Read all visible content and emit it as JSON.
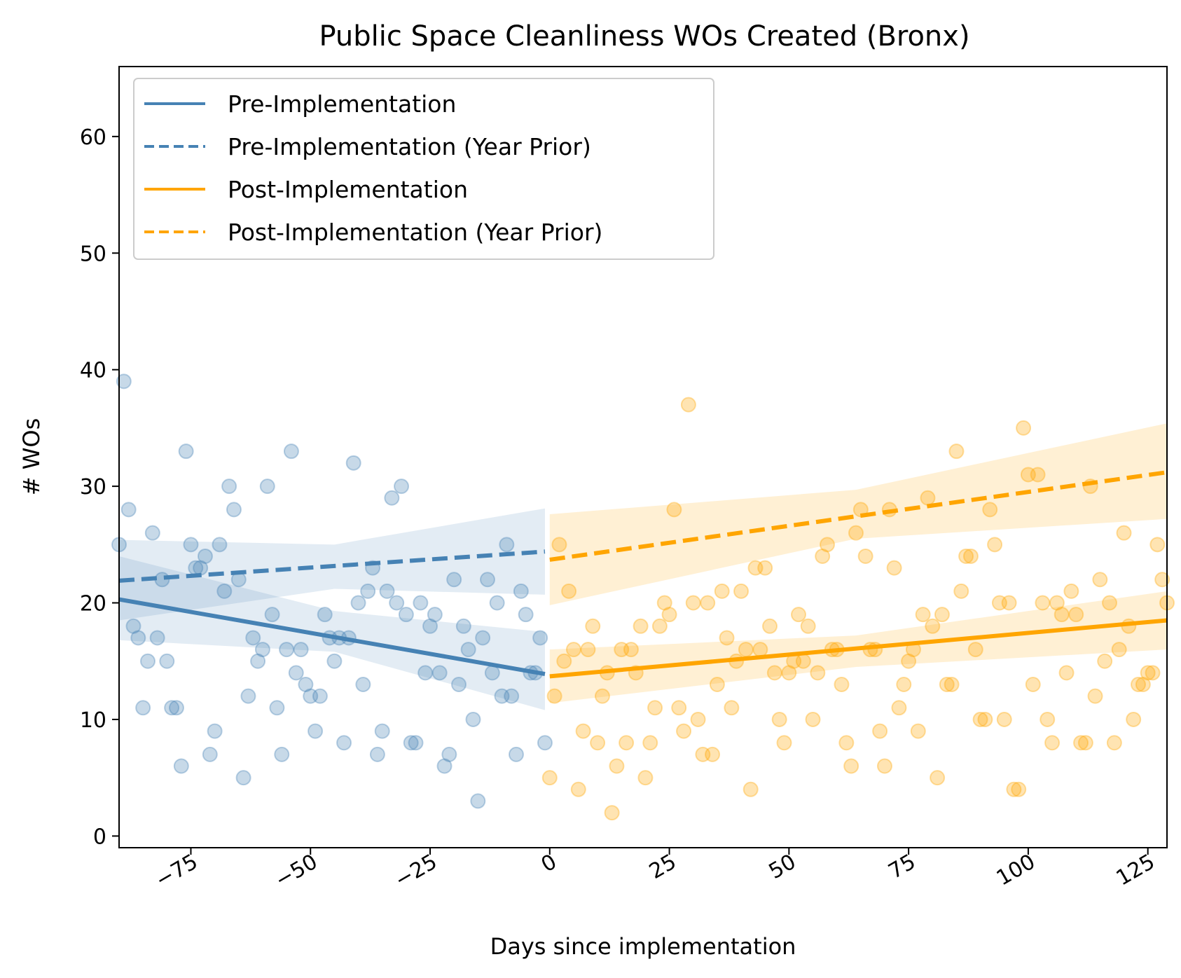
{
  "chart_data": {
    "type": "scatter",
    "title": "Public Space Cleanliness WOs Created (Bronx)",
    "xlabel": "Days since implementation",
    "ylabel": "# WOs",
    "xlim": [
      -90,
      129
    ],
    "ylim": [
      -1,
      66
    ],
    "xticks": [
      -75,
      -50,
      -25,
      0,
      25,
      50,
      75,
      100,
      125
    ],
    "xtick_labels": [
      "−75",
      "−50",
      "−25",
      "0",
      "25",
      "50",
      "75",
      "100",
      "125"
    ],
    "yticks": [
      0,
      10,
      20,
      30,
      40,
      50,
      60
    ],
    "ytick_labels": [
      "0",
      "10",
      "20",
      "30",
      "40",
      "50",
      "60"
    ],
    "grid": false,
    "legend_position": "top-left",
    "colors": {
      "pre": "#4682b4",
      "post": "#ffa500"
    },
    "series": [
      {
        "name": "Pre-Implementation",
        "color": "#4682b4",
        "style": "solid",
        "line": [
          [
            -90,
            20.3
          ],
          [
            -1,
            13.9
          ]
        ],
        "band": [
          [
            -90,
            24.0,
            16.8
          ],
          [
            -45,
            19.3,
            15.8
          ],
          [
            -1,
            17.5,
            10.8
          ]
        ]
      },
      {
        "name": "Pre-Implementation (Year Prior)",
        "color": "#4682b4",
        "style": "dashed",
        "line": [
          [
            -90,
            21.9
          ],
          [
            -1,
            24.4
          ]
        ],
        "band": [
          [
            -90,
            25.4,
            18.5
          ],
          [
            -45,
            25.0,
            21.2
          ],
          [
            -1,
            28.1,
            20.7
          ]
        ]
      },
      {
        "name": "Post-Implementation",
        "color": "#ffa500",
        "style": "solid",
        "line": [
          [
            0,
            13.7
          ],
          [
            129,
            18.5
          ]
        ],
        "band": [
          [
            0,
            16.0,
            11.4
          ],
          [
            64,
            17.2,
            14.5
          ],
          [
            129,
            21.0,
            16.0
          ]
        ]
      },
      {
        "name": "Post-Implementation (Year Prior)",
        "color": "#ffa500",
        "style": "dashed",
        "line": [
          [
            0,
            23.7
          ],
          [
            129,
            31.2
          ]
        ],
        "band": [
          [
            0,
            27.6,
            19.8
          ],
          [
            64,
            29.7,
            25.5
          ],
          [
            129,
            35.4,
            27.2
          ]
        ]
      }
    ],
    "points_pre": [
      [
        -90,
        25
      ],
      [
        -89,
        39
      ],
      [
        -88,
        28
      ],
      [
        -87,
        18
      ],
      [
        -86,
        17
      ],
      [
        -85,
        11
      ],
      [
        -84,
        15
      ],
      [
        -83,
        26
      ],
      [
        -82,
        17
      ],
      [
        -81,
        22
      ],
      [
        -80,
        15
      ],
      [
        -79,
        11
      ],
      [
        -78,
        11
      ],
      [
        -77,
        6
      ],
      [
        -76,
        33
      ],
      [
        -75,
        25
      ],
      [
        -74,
        23
      ],
      [
        -73,
        23
      ],
      [
        -72,
        24
      ],
      [
        -71,
        7
      ],
      [
        -70,
        9
      ],
      [
        -69,
        25
      ],
      [
        -68,
        21
      ],
      [
        -67,
        30
      ],
      [
        -66,
        28
      ],
      [
        -65,
        22
      ],
      [
        -64,
        5
      ],
      [
        -63,
        12
      ],
      [
        -62,
        17
      ],
      [
        -61,
        15
      ],
      [
        -60,
        16
      ],
      [
        -59,
        30
      ],
      [
        -58,
        19
      ],
      [
        -57,
        11
      ],
      [
        -56,
        7
      ],
      [
        -55,
        16
      ],
      [
        -54,
        33
      ],
      [
        -53,
        14
      ],
      [
        -52,
        16
      ],
      [
        -51,
        13
      ],
      [
        -50,
        12
      ],
      [
        -49,
        9
      ],
      [
        -48,
        12
      ],
      [
        -47,
        19
      ],
      [
        -46,
        17
      ],
      [
        -45,
        15
      ],
      [
        -44,
        17
      ],
      [
        -43,
        8
      ],
      [
        -42,
        17
      ],
      [
        -41,
        32
      ],
      [
        -40,
        20
      ],
      [
        -39,
        13
      ],
      [
        -38,
        21
      ],
      [
        -37,
        23
      ],
      [
        -36,
        7
      ],
      [
        -35,
        9
      ],
      [
        -34,
        21
      ],
      [
        -33,
        29
      ],
      [
        -32,
        20
      ],
      [
        -31,
        30
      ],
      [
        -30,
        19
      ],
      [
        -29,
        8
      ],
      [
        -28,
        8
      ],
      [
        -27,
        20
      ],
      [
        -26,
        14
      ],
      [
        -25,
        18
      ],
      [
        -24,
        19
      ],
      [
        -23,
        14
      ],
      [
        -22,
        6
      ],
      [
        -21,
        7
      ],
      [
        -20,
        22
      ],
      [
        -19,
        13
      ],
      [
        -18,
        18
      ],
      [
        -17,
        16
      ],
      [
        -16,
        10
      ],
      [
        -15,
        3
      ],
      [
        -14,
        17
      ],
      [
        -13,
        22
      ],
      [
        -12,
        14
      ],
      [
        -11,
        20
      ],
      [
        -10,
        12
      ],
      [
        -9,
        25
      ],
      [
        -8,
        12
      ],
      [
        -7,
        7
      ],
      [
        -6,
        21
      ],
      [
        -5,
        19
      ],
      [
        -4,
        14
      ],
      [
        -3,
        14
      ],
      [
        -2,
        17
      ],
      [
        -1,
        8
      ]
    ],
    "points_post": [
      [
        0,
        5
      ],
      [
        1,
        12
      ],
      [
        2,
        25
      ],
      [
        3,
        15
      ],
      [
        4,
        21
      ],
      [
        5,
        16
      ],
      [
        6,
        4
      ],
      [
        7,
        9
      ],
      [
        8,
        16
      ],
      [
        9,
        18
      ],
      [
        10,
        8
      ],
      [
        11,
        12
      ],
      [
        12,
        14
      ],
      [
        13,
        2
      ],
      [
        14,
        6
      ],
      [
        15,
        16
      ],
      [
        16,
        8
      ],
      [
        17,
        16
      ],
      [
        18,
        14
      ],
      [
        19,
        18
      ],
      [
        20,
        5
      ],
      [
        21,
        8
      ],
      [
        22,
        11
      ],
      [
        23,
        18
      ],
      [
        24,
        20
      ],
      [
        25,
        19
      ],
      [
        26,
        28
      ],
      [
        27,
        11
      ],
      [
        28,
        9
      ],
      [
        29,
        37
      ],
      [
        30,
        20
      ],
      [
        31,
        10
      ],
      [
        32,
        7
      ],
      [
        33,
        20
      ],
      [
        34,
        7
      ],
      [
        35,
        13
      ],
      [
        36,
        21
      ],
      [
        37,
        17
      ],
      [
        38,
        11
      ],
      [
        39,
        15
      ],
      [
        40,
        21
      ],
      [
        41,
        16
      ],
      [
        42,
        4
      ],
      [
        43,
        23
      ],
      [
        44,
        16
      ],
      [
        45,
        23
      ],
      [
        46,
        18
      ],
      [
        47,
        14
      ],
      [
        48,
        10
      ],
      [
        49,
        8
      ],
      [
        50,
        14
      ],
      [
        51,
        15
      ],
      [
        52,
        19
      ],
      [
        53,
        15
      ],
      [
        54,
        18
      ],
      [
        55,
        10
      ],
      [
        56,
        14
      ],
      [
        57,
        24
      ],
      [
        58,
        25
      ],
      [
        59,
        16
      ],
      [
        60,
        16
      ],
      [
        61,
        13
      ],
      [
        62,
        8
      ],
      [
        63,
        6
      ],
      [
        64,
        26
      ],
      [
        65,
        28
      ],
      [
        66,
        24
      ],
      [
        67,
        16
      ],
      [
        68,
        16
      ],
      [
        69,
        9
      ],
      [
        70,
        6
      ],
      [
        71,
        28
      ],
      [
        72,
        23
      ],
      [
        73,
        11
      ],
      [
        74,
        13
      ],
      [
        75,
        15
      ],
      [
        76,
        16
      ],
      [
        77,
        9
      ],
      [
        78,
        19
      ],
      [
        79,
        29
      ],
      [
        80,
        18
      ],
      [
        81,
        5
      ],
      [
        82,
        19
      ],
      [
        83,
        13
      ],
      [
        84,
        13
      ],
      [
        85,
        33
      ],
      [
        86,
        21
      ],
      [
        87,
        24
      ],
      [
        88,
        24
      ],
      [
        89,
        16
      ],
      [
        90,
        10
      ],
      [
        91,
        10
      ],
      [
        92,
        28
      ],
      [
        93,
        25
      ],
      [
        94,
        20
      ],
      [
        95,
        10
      ],
      [
        96,
        20
      ],
      [
        97,
        4
      ],
      [
        98,
        4
      ],
      [
        99,
        35
      ],
      [
        100,
        31
      ],
      [
        101,
        13
      ],
      [
        102,
        31
      ],
      [
        103,
        20
      ],
      [
        104,
        10
      ],
      [
        105,
        8
      ],
      [
        106,
        20
      ],
      [
        107,
        19
      ],
      [
        108,
        14
      ],
      [
        109,
        21
      ],
      [
        110,
        19
      ],
      [
        111,
        8
      ],
      [
        112,
        8
      ],
      [
        113,
        30
      ],
      [
        114,
        12
      ],
      [
        115,
        22
      ],
      [
        116,
        15
      ],
      [
        117,
        20
      ],
      [
        118,
        8
      ],
      [
        119,
        16
      ],
      [
        120,
        26
      ],
      [
        121,
        18
      ],
      [
        122,
        10
      ],
      [
        123,
        13
      ],
      [
        124,
        13
      ],
      [
        125,
        14
      ],
      [
        126,
        14
      ],
      [
        127,
        25
      ],
      [
        128,
        22
      ],
      [
        129,
        20
      ]
    ]
  }
}
